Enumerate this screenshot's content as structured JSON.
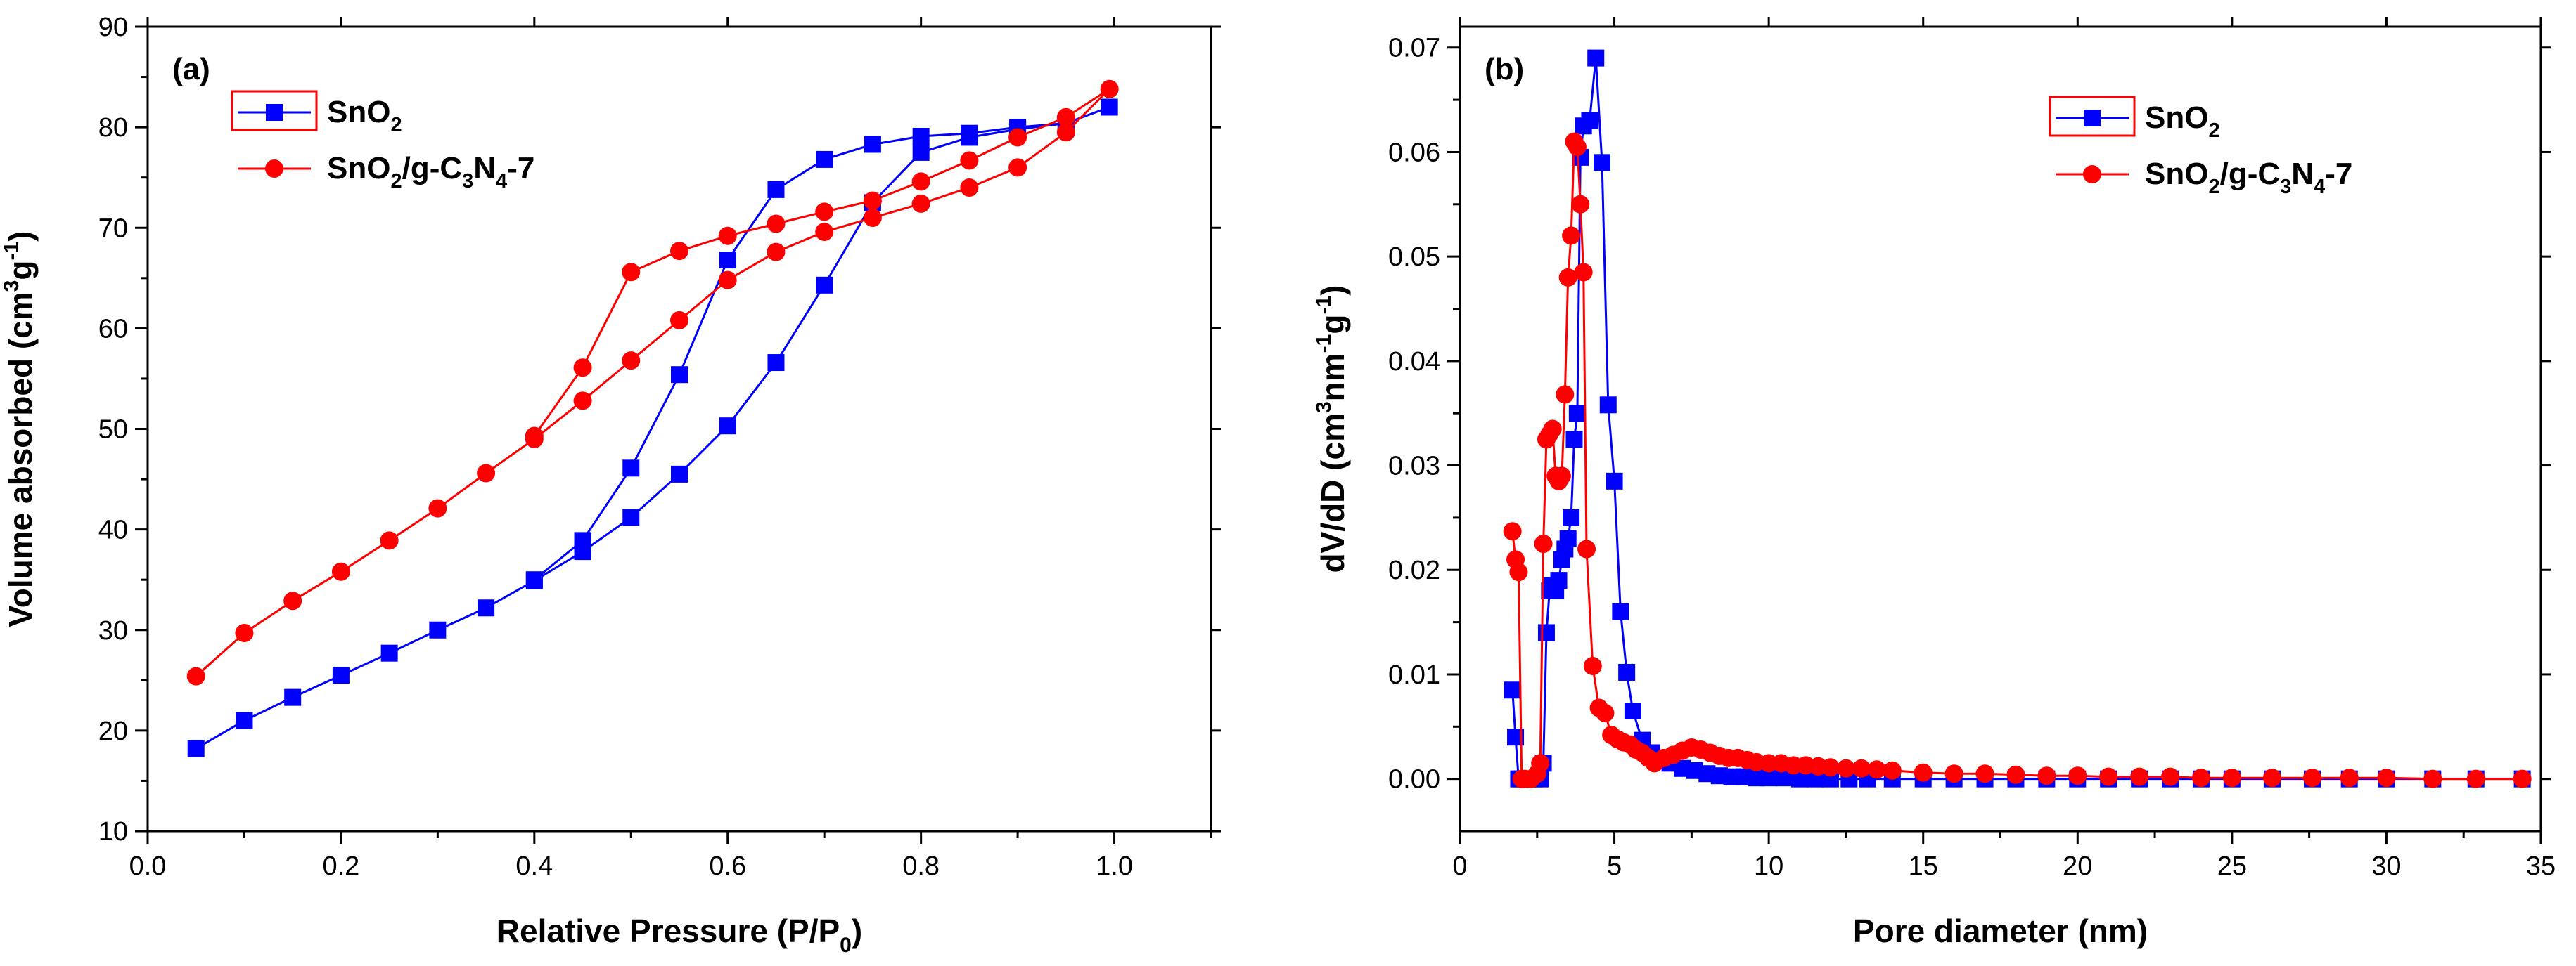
{
  "colors": {
    "sno2": "#0000ff",
    "composite": "#ff0000",
    "axis": "#000000",
    "background": "#ffffff"
  },
  "chart_data": [
    {
      "type": "line",
      "panel_label": "(a)",
      "xlabel": {
        "main": "Relative Pressure (P/P",
        "sub": "0",
        "tail": ")"
      },
      "ylabel": {
        "parts": [
          {
            "t": "Volume absorbed (cm",
            "k": "n"
          },
          {
            "t": "3",
            "k": "sup"
          },
          {
            "t": "g",
            "k": "n"
          },
          {
            "t": "-1",
            "k": "sup"
          },
          {
            "t": ")",
            "k": "n"
          }
        ]
      },
      "xlim": [
        0.0,
        1.1
      ],
      "ylim": [
        10,
        90
      ],
      "xticks": [
        0.0,
        0.2,
        0.4,
        0.6,
        0.8,
        1.0
      ],
      "xtick_labels": [
        "0.0",
        "0.2",
        "0.4",
        "0.6",
        "0.8",
        "1.0"
      ],
      "yticks": [
        10,
        20,
        30,
        40,
        50,
        60,
        70,
        80,
        90
      ],
      "ytick_labels": [
        "10",
        "20",
        "30",
        "40",
        "50",
        "60",
        "70",
        "80",
        "90"
      ],
      "legend_position": "top-left",
      "series": [
        {
          "name": "SnO2",
          "label_parts": [
            {
              "t": "SnO",
              "k": "n"
            },
            {
              "t": "2",
              "k": "sub"
            }
          ],
          "marker": "square",
          "color_key": "sno2",
          "x": [
            0.05,
            0.1,
            0.15,
            0.2,
            0.25,
            0.3,
            0.35,
            0.4,
            0.45,
            0.5,
            0.55,
            0.6,
            0.65,
            0.7,
            0.75,
            0.8,
            0.85,
            0.9,
            0.95,
            0.995,
            0.95,
            0.9,
            0.85,
            0.8,
            0.75,
            0.7,
            0.65,
            0.6,
            0.55,
            0.5,
            0.45,
            0.4
          ],
          "y": [
            18.2,
            21.0,
            23.3,
            25.5,
            27.7,
            30.0,
            32.2,
            34.9,
            37.8,
            41.2,
            45.5,
            50.3,
            56.6,
            64.3,
            72.5,
            77.5,
            79.0,
            79.8,
            80.4,
            82.0,
            80.4,
            80.0,
            79.4,
            79.1,
            78.3,
            76.8,
            73.8,
            66.8,
            55.4,
            46.1,
            38.9,
            35.0
          ]
        },
        {
          "name": "SnO2/g-C3N4-7",
          "label_parts": [
            {
              "t": "SnO",
              "k": "n"
            },
            {
              "t": "2",
              "k": "sub"
            },
            {
              "t": "/g-C",
              "k": "n"
            },
            {
              "t": "3",
              "k": "sub"
            },
            {
              "t": "N",
              "k": "n"
            },
            {
              "t": "4",
              "k": "sub"
            },
            {
              "t": "-7",
              "k": "n"
            }
          ],
          "marker": "circle",
          "color_key": "composite",
          "x": [
            0.05,
            0.1,
            0.15,
            0.2,
            0.25,
            0.3,
            0.35,
            0.4,
            0.45,
            0.5,
            0.55,
            0.6,
            0.65,
            0.7,
            0.75,
            0.8,
            0.85,
            0.9,
            0.95,
            0.995,
            0.95,
            0.9,
            0.85,
            0.8,
            0.75,
            0.7,
            0.65,
            0.6,
            0.55,
            0.5,
            0.45,
            0.4
          ],
          "y": [
            25.4,
            29.7,
            32.9,
            35.8,
            38.9,
            42.1,
            45.6,
            49.0,
            52.8,
            56.8,
            60.8,
            64.8,
            67.6,
            69.6,
            71.0,
            72.4,
            74.0,
            76.0,
            79.5,
            83.8,
            81.0,
            79.0,
            76.7,
            74.6,
            72.7,
            71.6,
            70.4,
            69.2,
            67.7,
            65.6,
            56.1,
            49.3
          ]
        }
      ]
    },
    {
      "type": "line",
      "panel_label": "(b)",
      "xlabel": {
        "main": "Pore diameter (nm)",
        "sub": "",
        "tail": ""
      },
      "ylabel": {
        "parts": [
          {
            "t": "dV/dD (cm",
            "k": "n"
          },
          {
            "t": "3",
            "k": "sup"
          },
          {
            "t": "nm",
            "k": "n"
          },
          {
            "t": "-1",
            "k": "sup"
          },
          {
            "t": "g",
            "k": "n"
          },
          {
            "t": "-1",
            "k": "sup"
          },
          {
            "t": ")",
            "k": "n"
          }
        ]
      },
      "xlim": [
        0,
        35
      ],
      "ylim": [
        -0.005,
        0.072
      ],
      "xticks": [
        0,
        5,
        10,
        15,
        20,
        25,
        30,
        35
      ],
      "xtick_labels": [
        "0",
        "5",
        "10",
        "15",
        "20",
        "25",
        "30",
        "35"
      ],
      "yticks": [
        0.0,
        0.01,
        0.02,
        0.03,
        0.04,
        0.05,
        0.06,
        0.07
      ],
      "ytick_labels": [
        "0.00",
        "0.01",
        "0.02",
        "0.03",
        "0.04",
        "0.05",
        "0.06",
        "0.07"
      ],
      "legend_position": "top-right",
      "series": [
        {
          "name": "SnO2",
          "label_parts": [
            {
              "t": "SnO",
              "k": "n"
            },
            {
              "t": "2",
              "k": "sub"
            }
          ],
          "marker": "square",
          "color_key": "sno2",
          "x": [
            1.7,
            1.8,
            1.9,
            2.0,
            2.2,
            2.4,
            2.6,
            2.7,
            2.8,
            2.9,
            3.0,
            3.1,
            3.2,
            3.3,
            3.4,
            3.5,
            3.6,
            3.7,
            3.8,
            3.9,
            4.0,
            4.2,
            4.4,
            4.6,
            4.8,
            5.0,
            5.2,
            5.4,
            5.6,
            5.9,
            6.2,
            6.5,
            6.8,
            7.2,
            7.6,
            8.0,
            8.4,
            8.8,
            9.2,
            9.6,
            10.0,
            10.5,
            11.0,
            11.5,
            12.0,
            12.6,
            13.2,
            14.0,
            15.0,
            16.0,
            17.0,
            18.0,
            19.0,
            20.0,
            21.0,
            22.0,
            23.0,
            24.0,
            25.0,
            26.3,
            27.6,
            28.8,
            30.0,
            31.5,
            32.9,
            34.4
          ],
          "y": [
            0.0085,
            0.004,
            0.0,
            0.0,
            0.0,
            0.0,
            0.0,
            0.0015,
            0.014,
            0.018,
            0.0185,
            0.018,
            0.019,
            0.021,
            0.022,
            0.023,
            0.025,
            0.0325,
            0.035,
            0.0595,
            0.0625,
            0.063,
            0.069,
            0.059,
            0.0358,
            0.0285,
            0.016,
            0.0102,
            0.0065,
            0.0037,
            0.0025,
            0.002,
            0.0015,
            0.001,
            0.0008,
            0.0005,
            0.0003,
            0.0002,
            0.0002,
            0.0001,
            0.0001,
            0.0001,
            0.0,
            0.0,
            0.0,
            0.0,
            0.0,
            0.0,
            0.0,
            0.0,
            0.0,
            0.0,
            0.0,
            0.0,
            0.0,
            0.0,
            0.0,
            0.0,
            0.0,
            0.0,
            0.0,
            0.0,
            0.0,
            0.0,
            0.0,
            0.0
          ]
        },
        {
          "name": "SnO2/g-C3N4-7",
          "label_parts": [
            {
              "t": "SnO",
              "k": "n"
            },
            {
              "t": "2",
              "k": "sub"
            },
            {
              "t": "/g-C",
              "k": "n"
            },
            {
              "t": "3",
              "k": "sub"
            },
            {
              "t": "N",
              "k": "n"
            },
            {
              "t": "4",
              "k": "sub"
            },
            {
              "t": "-7",
              "k": "n"
            }
          ],
          "marker": "circle",
          "color_key": "composite",
          "x": [
            1.7,
            1.8,
            1.9,
            2.0,
            2.1,
            2.3,
            2.5,
            2.6,
            2.7,
            2.8,
            2.9,
            3.0,
            3.1,
            3.2,
            3.3,
            3.4,
            3.5,
            3.6,
            3.7,
            3.8,
            3.9,
            4.0,
            4.1,
            4.3,
            4.5,
            4.7,
            4.9,
            5.1,
            5.3,
            5.5,
            5.7,
            5.9,
            6.1,
            6.3,
            6.6,
            6.9,
            7.2,
            7.5,
            7.8,
            8.1,
            8.4,
            8.7,
            9.0,
            9.3,
            9.6,
            10.0,
            10.4,
            10.8,
            11.2,
            11.6,
            12.0,
            12.5,
            13.0,
            13.5,
            14.0,
            15.0,
            16.0,
            17.0,
            18.0,
            19.0,
            20.0,
            21.0,
            22.0,
            23.0,
            24.0,
            25.0,
            26.3,
            27.6,
            28.8,
            30.0,
            31.5,
            32.9,
            34.4
          ],
          "y": [
            0.0237,
            0.021,
            0.0198,
            0.0,
            0.0,
            0.0,
            0.0005,
            0.0015,
            0.0225,
            0.0325,
            0.033,
            0.0335,
            0.029,
            0.0285,
            0.029,
            0.0368,
            0.048,
            0.052,
            0.061,
            0.0605,
            0.055,
            0.0485,
            0.022,
            0.0108,
            0.0068,
            0.0063,
            0.0042,
            0.0038,
            0.0035,
            0.0033,
            0.0028,
            0.0025,
            0.002,
            0.0015,
            0.002,
            0.0023,
            0.0027,
            0.003,
            0.0028,
            0.0025,
            0.0022,
            0.002,
            0.002,
            0.0018,
            0.0016,
            0.0015,
            0.0015,
            0.0013,
            0.0013,
            0.0012,
            0.0011,
            0.001,
            0.001,
            0.0009,
            0.0008,
            0.0006,
            0.0005,
            0.0005,
            0.0004,
            0.0003,
            0.0003,
            0.0002,
            0.0002,
            0.0002,
            0.0001,
            0.0001,
            0.0001,
            0.0001,
            0.0001,
            0.0001,
            0.0,
            0.0,
            0.0
          ]
        }
      ]
    }
  ]
}
